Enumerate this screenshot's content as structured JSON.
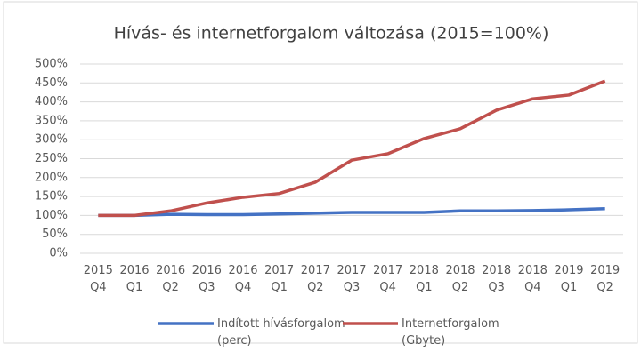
{
  "chart_data": {
    "type": "line",
    "title": "Hívás- és internetforgalom változása (2015=100%)",
    "categories": [
      "2015 Q4",
      "2016 Q1",
      "2016 Q2",
      "2016 Q3",
      "2016 Q4",
      "2017 Q1",
      "2017 Q2",
      "2017 Q3",
      "2017 Q4",
      "2018 Q1",
      "2018 Q2",
      "2018 Q3",
      "2018 Q4",
      "2019 Q1",
      "2019 Q2"
    ],
    "series": [
      {
        "name": "Indított hívásforgalom (perc)",
        "color": "#4472c4",
        "values": [
          100,
          100,
          103,
          102,
          102,
          104,
          106,
          108,
          108,
          108,
          112,
          112,
          113,
          115,
          118
        ]
      },
      {
        "name": "Internetforgalom (Gbyte)",
        "color": "#c0504d",
        "values": [
          100,
          100,
          112,
          133,
          148,
          158,
          188,
          246,
          263,
          303,
          329,
          378,
          408,
          418,
          455
        ]
      }
    ],
    "ylim": [
      0,
      500
    ],
    "yticks": [
      {
        "value": 0,
        "label": "0%"
      },
      {
        "value": 50,
        "label": "50%"
      },
      {
        "value": 100,
        "label": "100%"
      },
      {
        "value": 150,
        "label": "150%"
      },
      {
        "value": 200,
        "label": "200%"
      },
      {
        "value": 250,
        "label": "250%"
      },
      {
        "value": 300,
        "label": "300%"
      },
      {
        "value": 350,
        "label": "350%"
      },
      {
        "value": 400,
        "label": "400%"
      },
      {
        "value": 450,
        "label": "450%"
      },
      {
        "value": 500,
        "label": "500%"
      }
    ],
    "grid": true,
    "legend": "bottom"
  }
}
